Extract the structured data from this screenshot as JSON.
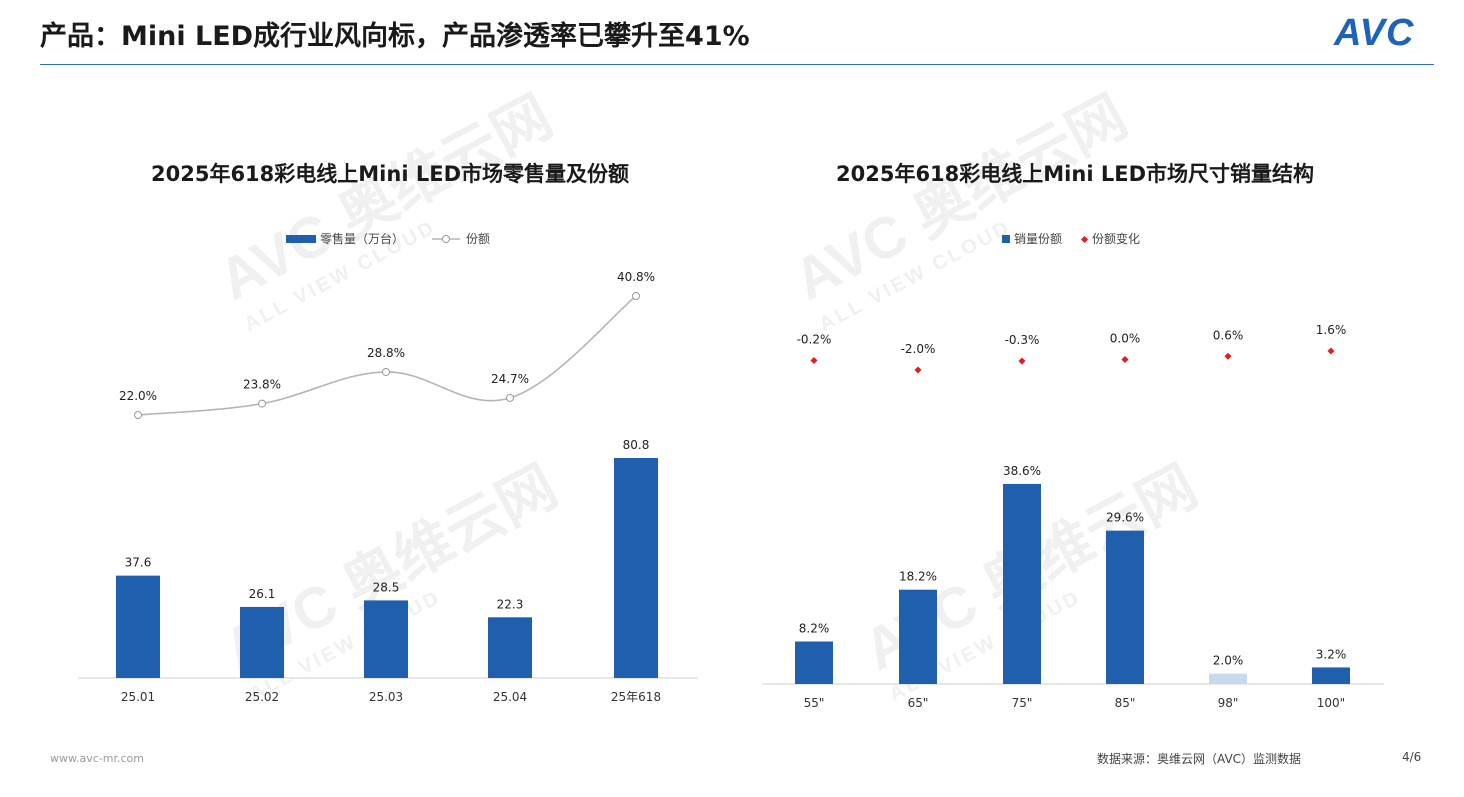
{
  "page": {
    "title": "产品：Mini LED成行业风向标，产品渗透率已攀升至41%",
    "logo": "AVC",
    "watermark": "AVC 奥维云网",
    "watermark_sub": "ALL VIEW CLOUD",
    "footer_left": "www.avc-mr.com",
    "footer_source": "数据来源：奥维云网（AVC）监测数据",
    "page_number": "4/6",
    "colors": {
      "bar": "#1f5fae",
      "bar_light": "#c6d9ee",
      "line": "#b5b5b5",
      "dot": "#e02020",
      "rule": "#2e6fbf"
    }
  },
  "chart_data": [
    {
      "type": "bar",
      "title": "2025年618彩电线上Mini LED市场零售量及份额",
      "categories": [
        "25.01",
        "25.02",
        "25.03",
        "25.04",
        "25年618"
      ],
      "series": [
        {
          "name": "零售量（万台）",
          "type": "bar",
          "values": [
            37.6,
            26.1,
            28.5,
            22.3,
            80.8
          ],
          "labels": [
            "37.6",
            "26.1",
            "28.5",
            "22.3",
            "80.8"
          ]
        },
        {
          "name": "份额",
          "type": "line",
          "values": [
            22.0,
            23.8,
            28.8,
            24.7,
            40.8
          ],
          "labels": [
            "22.0%",
            "23.8%",
            "28.8%",
            "24.7%",
            "40.8%"
          ]
        }
      ]
    },
    {
      "type": "bar",
      "title": "2025年618彩电线上Mini LED市场尺寸销量结构",
      "categories": [
        "55\"",
        "65\"",
        "75\"",
        "85\"",
        "98\"",
        "100\""
      ],
      "series": [
        {
          "name": "销量份额",
          "type": "bar",
          "values": [
            8.2,
            18.2,
            38.6,
            29.6,
            2.0,
            3.2
          ],
          "labels": [
            "8.2%",
            "18.2%",
            "38.6%",
            "29.6%",
            "2.0%",
            "3.2%"
          ]
        },
        {
          "name": "份额变化",
          "type": "scatter",
          "values": [
            -0.2,
            -2.0,
            -0.3,
            0.0,
            0.6,
            1.6
          ],
          "labels": [
            "-0.2%",
            "-2.0%",
            "-0.3%",
            "0.0%",
            "0.6%",
            "1.6%"
          ]
        }
      ]
    }
  ]
}
